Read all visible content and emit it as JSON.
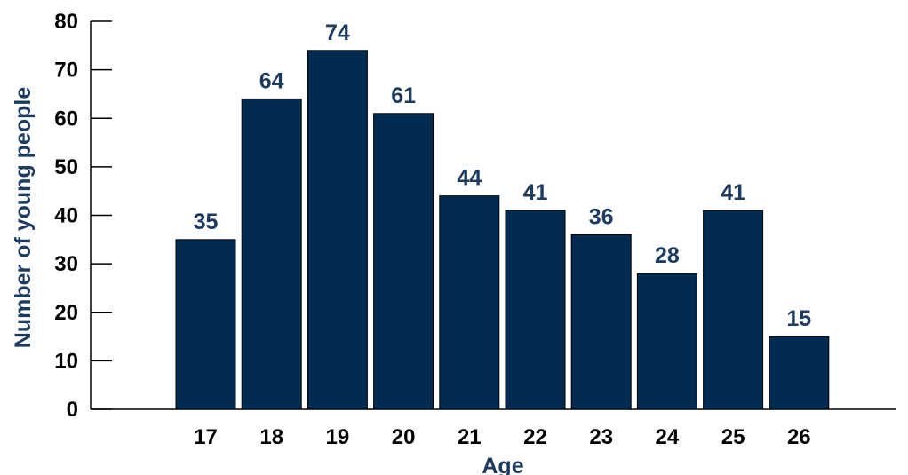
{
  "colors": {
    "bar": "#022b52",
    "axis_title": "#1d3a5f",
    "data_label": "#1d3a5f",
    "axis": "#000000"
  },
  "chart_data": {
    "type": "bar",
    "title": "",
    "xlabel": "Age",
    "ylabel": "Number of young people",
    "categories": [
      "17",
      "18",
      "19",
      "20",
      "21",
      "22",
      "23",
      "24",
      "25",
      "26"
    ],
    "values": [
      35,
      64,
      74,
      61,
      44,
      41,
      36,
      28,
      41,
      15
    ],
    "ylim": [
      0,
      80
    ],
    "yticks": [
      0,
      10,
      20,
      30,
      40,
      50,
      60,
      70,
      80
    ],
    "grid": false,
    "legend": "none"
  }
}
